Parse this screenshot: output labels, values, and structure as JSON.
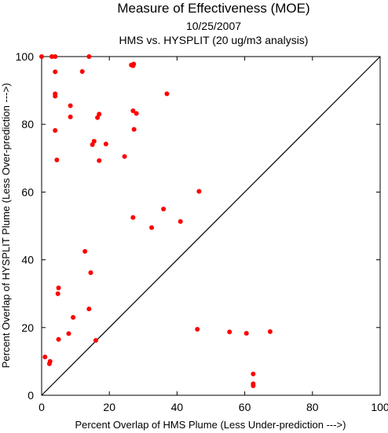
{
  "chart_data": {
    "type": "scatter",
    "title": "Measure of Effectiveness (MOE)",
    "subtitles": [
      "10/25/2007",
      "HMS vs. HYSPLIT  (20 ug/m3 analysis)"
    ],
    "xlabel": "Percent Overlap of HMS Plume (Less Under-prediction --->)",
    "ylabel": "Percent Overlap of HYSPLIT Plume (Less Over-prediction --->)",
    "xlim": [
      0,
      100
    ],
    "ylim": [
      0,
      100
    ],
    "xticks": [
      0,
      20,
      40,
      60,
      80,
      100
    ],
    "yticks": [
      0,
      20,
      40,
      60,
      80,
      100
    ],
    "reference_line": "diagonal y = x",
    "grid": false,
    "marker_color": "#ff0000",
    "series": [
      {
        "points": [
          [
            0,
            100
          ],
          [
            3,
            100
          ],
          [
            4,
            100
          ],
          [
            14,
            100
          ],
          [
            4,
            95.5
          ],
          [
            12,
            95.6
          ],
          [
            26.5,
            97.5
          ],
          [
            27,
            97.3
          ],
          [
            27.2,
            97.8
          ],
          [
            4,
            89
          ],
          [
            4,
            88.3
          ],
          [
            37,
            89
          ],
          [
            8.5,
            85.5
          ],
          [
            27,
            84
          ],
          [
            28,
            83.2
          ],
          [
            17,
            83
          ],
          [
            8.5,
            82.2
          ],
          [
            16.5,
            82
          ],
          [
            4,
            78.2
          ],
          [
            27.3,
            78.5
          ],
          [
            15.5,
            75
          ],
          [
            15,
            74
          ],
          [
            19,
            74.2
          ],
          [
            24.5,
            70.5
          ],
          [
            4.5,
            69.5
          ],
          [
            17,
            69.3
          ],
          [
            46.5,
            60.2
          ],
          [
            36,
            55
          ],
          [
            27,
            52.5
          ],
          [
            41,
            51.3
          ],
          [
            32.5,
            49.5
          ],
          [
            12.8,
            42.5
          ],
          [
            14.5,
            36.2
          ],
          [
            5,
            31.7
          ],
          [
            4.8,
            30
          ],
          [
            14,
            25.5
          ],
          [
            9.3,
            23
          ],
          [
            46,
            19.5
          ],
          [
            55.5,
            18.7
          ],
          [
            60.5,
            18.3
          ],
          [
            67.5,
            18.8
          ],
          [
            8,
            18.2
          ],
          [
            5,
            16.5
          ],
          [
            16,
            16.2
          ],
          [
            1,
            11.3
          ],
          [
            2.5,
            10
          ],
          [
            2.3,
            9.3
          ],
          [
            62.5,
            6.3
          ],
          [
            62.5,
            3.4
          ],
          [
            62.5,
            2.8
          ]
        ]
      }
    ]
  }
}
